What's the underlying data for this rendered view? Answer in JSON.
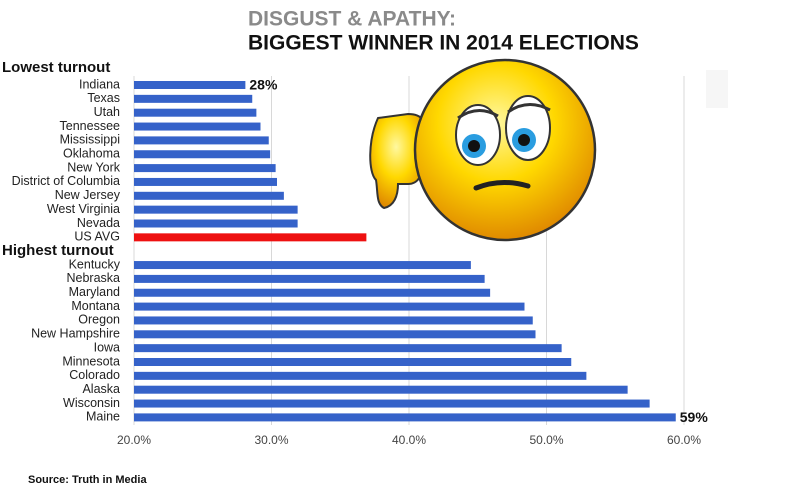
{
  "chart_data": {
    "type": "hbar",
    "title": "DISGUST & APATHY:",
    "subtitle": "BIGGEST WINNER IN 2014 ELECTIONS",
    "annotations": [
      "Lowest turnout",
      "Highest turnout"
    ],
    "source": "Source: Truth in Media",
    "categories": [
      "Indiana",
      "Texas",
      "Utah",
      "Tennessee",
      "Mississippi",
      "Oklahoma",
      "New York",
      "District of Columbia",
      "New Jersey",
      "West Virginia",
      "Nevada",
      "US AVG",
      null,
      "Kentucky",
      "Nebraska",
      "Maryland",
      "Montana",
      "Oregon",
      "New Hampshire",
      "Iowa",
      "Minnesota",
      "Colorado",
      "Alaska",
      "Wisconsin",
      "Maine"
    ],
    "values": [
      28.1,
      28.6,
      28.9,
      29.2,
      29.8,
      29.9,
      30.3,
      30.4,
      30.9,
      31.9,
      31.9,
      36.9,
      null,
      44.5,
      45.5,
      45.9,
      48.4,
      49.0,
      49.2,
      51.1,
      51.8,
      52.9,
      55.9,
      57.5,
      59.4
    ],
    "value_labels": [
      "28%",
      null,
      null,
      null,
      null,
      null,
      null,
      null,
      null,
      null,
      null,
      null,
      null,
      null,
      null,
      null,
      null,
      null,
      null,
      null,
      null,
      null,
      null,
      null,
      "59%"
    ],
    "colors": [
      "#3562c9",
      "#3562c9",
      "#3562c9",
      "#3562c9",
      "#3562c9",
      "#3562c9",
      "#3562c9",
      "#3562c9",
      "#3562c9",
      "#3562c9",
      "#3562c9",
      "#ee1111",
      null,
      "#3562c9",
      "#3562c9",
      "#3562c9",
      "#3562c9",
      "#3562c9",
      "#3562c9",
      "#3562c9",
      "#3562c9",
      "#3562c9",
      "#3562c9",
      "#3562c9",
      "#3562c9"
    ],
    "xlim": [
      20,
      60
    ],
    "xticks": [
      {
        "value": 20,
        "label": "20.0%"
      },
      {
        "value": 30,
        "label": "30.0%"
      },
      {
        "value": 40,
        "label": "40.0%"
      },
      {
        "value": 50,
        "label": "50.0%"
      },
      {
        "value": 60,
        "label": "60.0%"
      }
    ],
    "grid": true
  }
}
